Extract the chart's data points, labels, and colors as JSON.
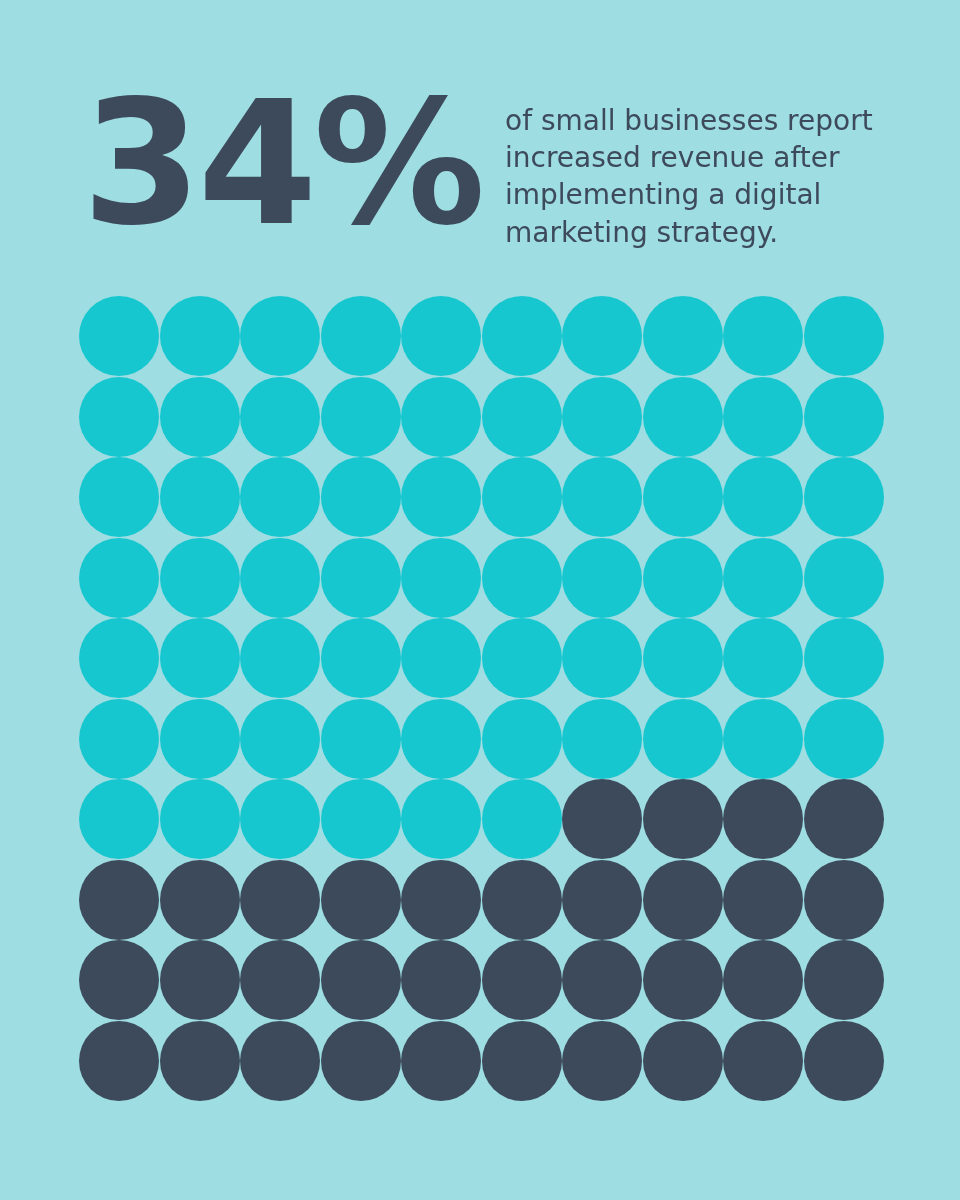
{
  "chart_data": {
    "type": "other",
    "subtitle": "of small businesses report increased revenue after implementing a digital marketing strategy.",
    "values": [
      34
    ],
    "value_labels": [
      "34%"
    ],
    "data_labels": true,
    "colors": [
      "#3d4a5c"
    ]
  }
}
